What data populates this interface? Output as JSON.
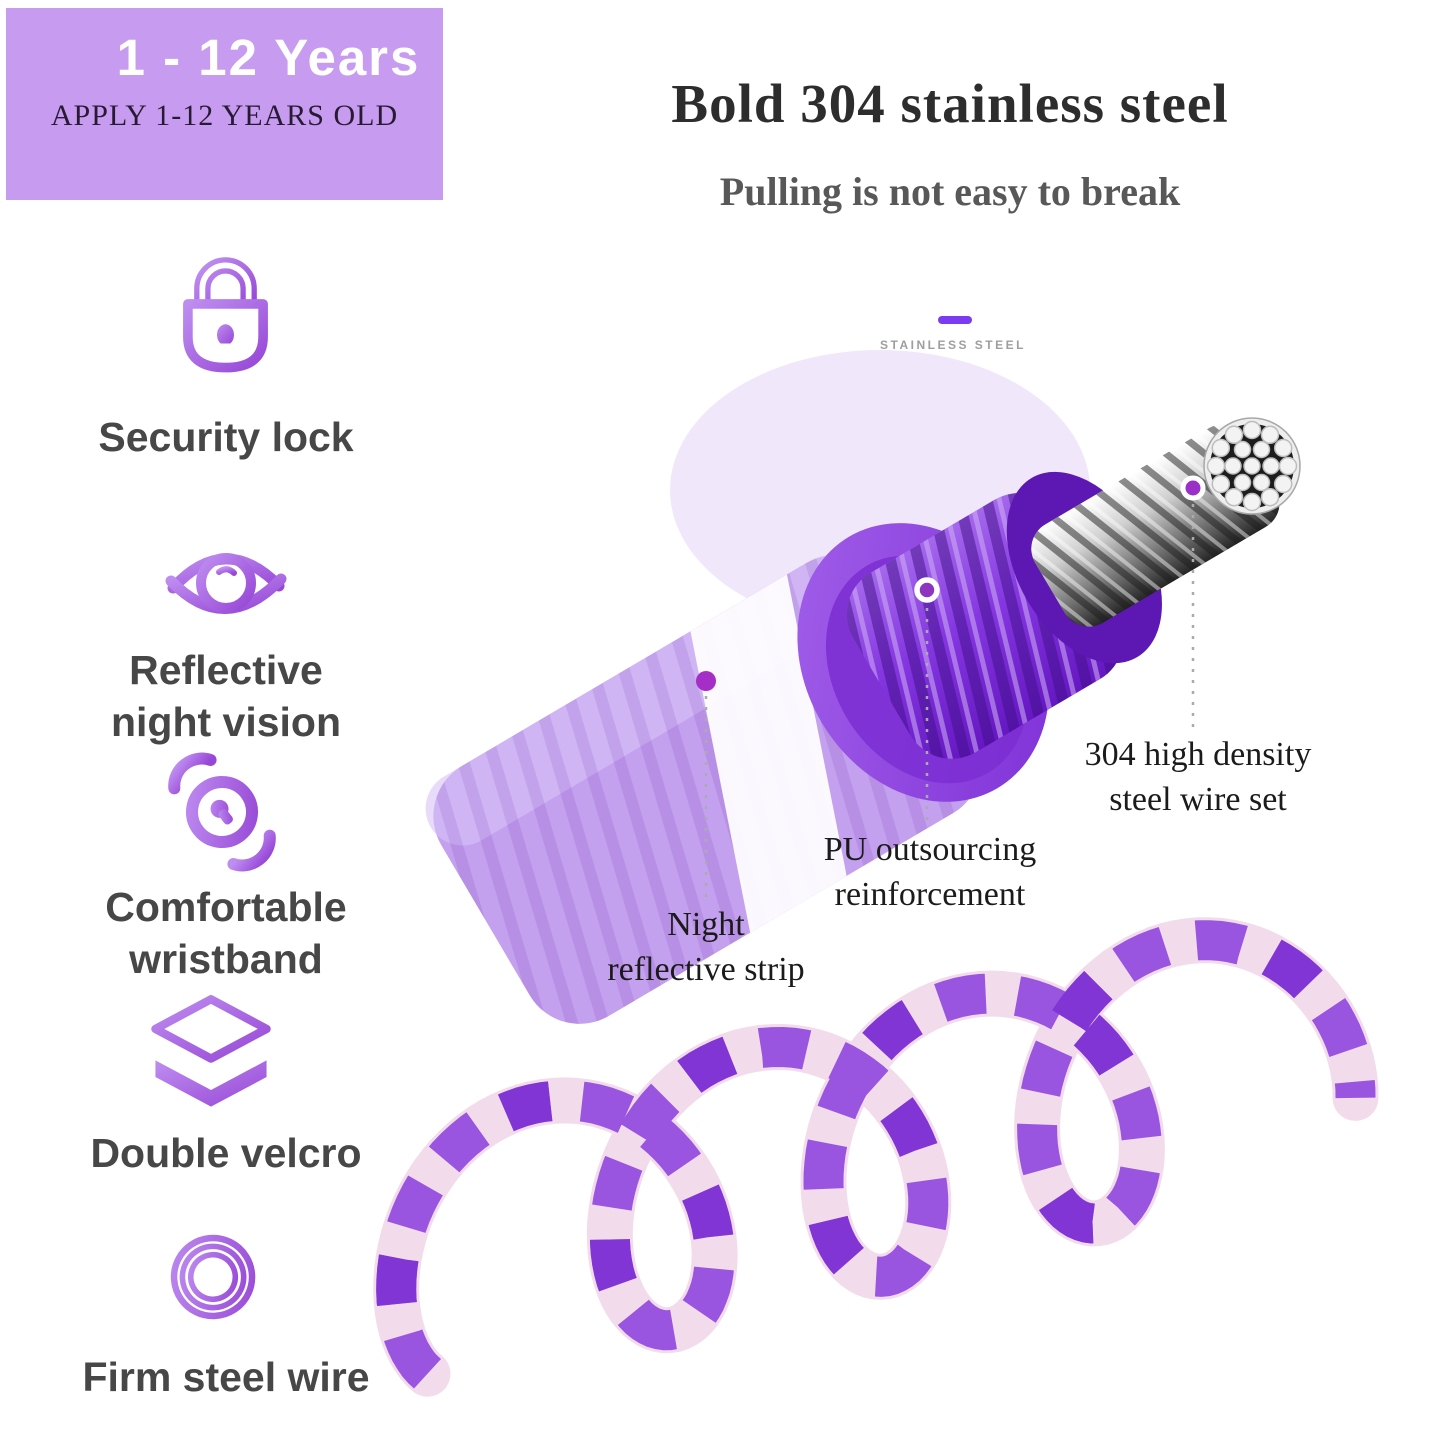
{
  "banner": {
    "age_range": "1 - 12  Years",
    "subtitle": "APPLY 1-12 YEARS OLD",
    "bg_color": "#c79bef"
  },
  "header": {
    "title": "Bold 304 stainless steel",
    "subtitle": "Pulling is not easy to break"
  },
  "material_tag": {
    "label": "STAINLESS STEEL"
  },
  "features": [
    {
      "icon": "lock-icon",
      "lines": [
        "Security lock"
      ]
    },
    {
      "icon": "eye-icon",
      "lines": [
        "Reflective",
        "night vision"
      ]
    },
    {
      "icon": "wristband-icon",
      "lines": [
        "Comfortable",
        "wristband"
      ]
    },
    {
      "icon": "layers-icon",
      "lines": [
        "Double velcro"
      ]
    },
    {
      "icon": "coil-icon",
      "lines": [
        "Firm steel wire"
      ]
    }
  ],
  "callouts": [
    {
      "id": "night-reflective-strip",
      "lines": [
        "Night",
        "reflective strip"
      ]
    },
    {
      "id": "pu-outsourcing",
      "lines": [
        "PU outsourcing",
        "reinforcement"
      ]
    },
    {
      "id": "steel-wire-set",
      "lines": [
        "304 high density",
        "steel wire set"
      ]
    }
  ],
  "colors": {
    "accent_purple": "#a55ede",
    "deep_purple": "#7a26d4",
    "banner_bg": "#c79bef",
    "pink_stripe": "#f1dbeb",
    "label_gray": "#474747"
  }
}
